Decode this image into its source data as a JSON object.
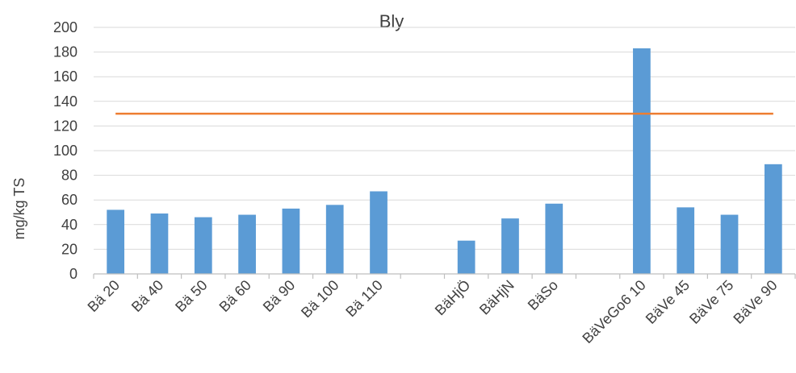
{
  "chart_data": {
    "type": "bar",
    "title": "Bly",
    "ylabel": "mg/kg TS",
    "xlabel": "",
    "ylim": [
      0,
      200
    ],
    "yticks": [
      0,
      20,
      40,
      60,
      80,
      100,
      120,
      140,
      160,
      180,
      200
    ],
    "grid": true,
    "categories": [
      "Bä 20",
      "Bä 40",
      "Bä 50",
      "Bä 60",
      "Bä 90",
      "Bä 100",
      "Bä 110",
      "",
      "BäHjÖ",
      "BäHjN",
      "BäSo",
      "",
      "BäVeGo6 10",
      "BäVe 45",
      "BäVe 75",
      "BäVe 90"
    ],
    "values": [
      52,
      49,
      46,
      48,
      53,
      56,
      67,
      null,
      27,
      45,
      57,
      null,
      183,
      54,
      48,
      89
    ],
    "reference_line": {
      "value": 130,
      "color": "#ed7d31"
    },
    "bar_color": "#5b9bd5",
    "grid_color": "#d9d9d9"
  }
}
